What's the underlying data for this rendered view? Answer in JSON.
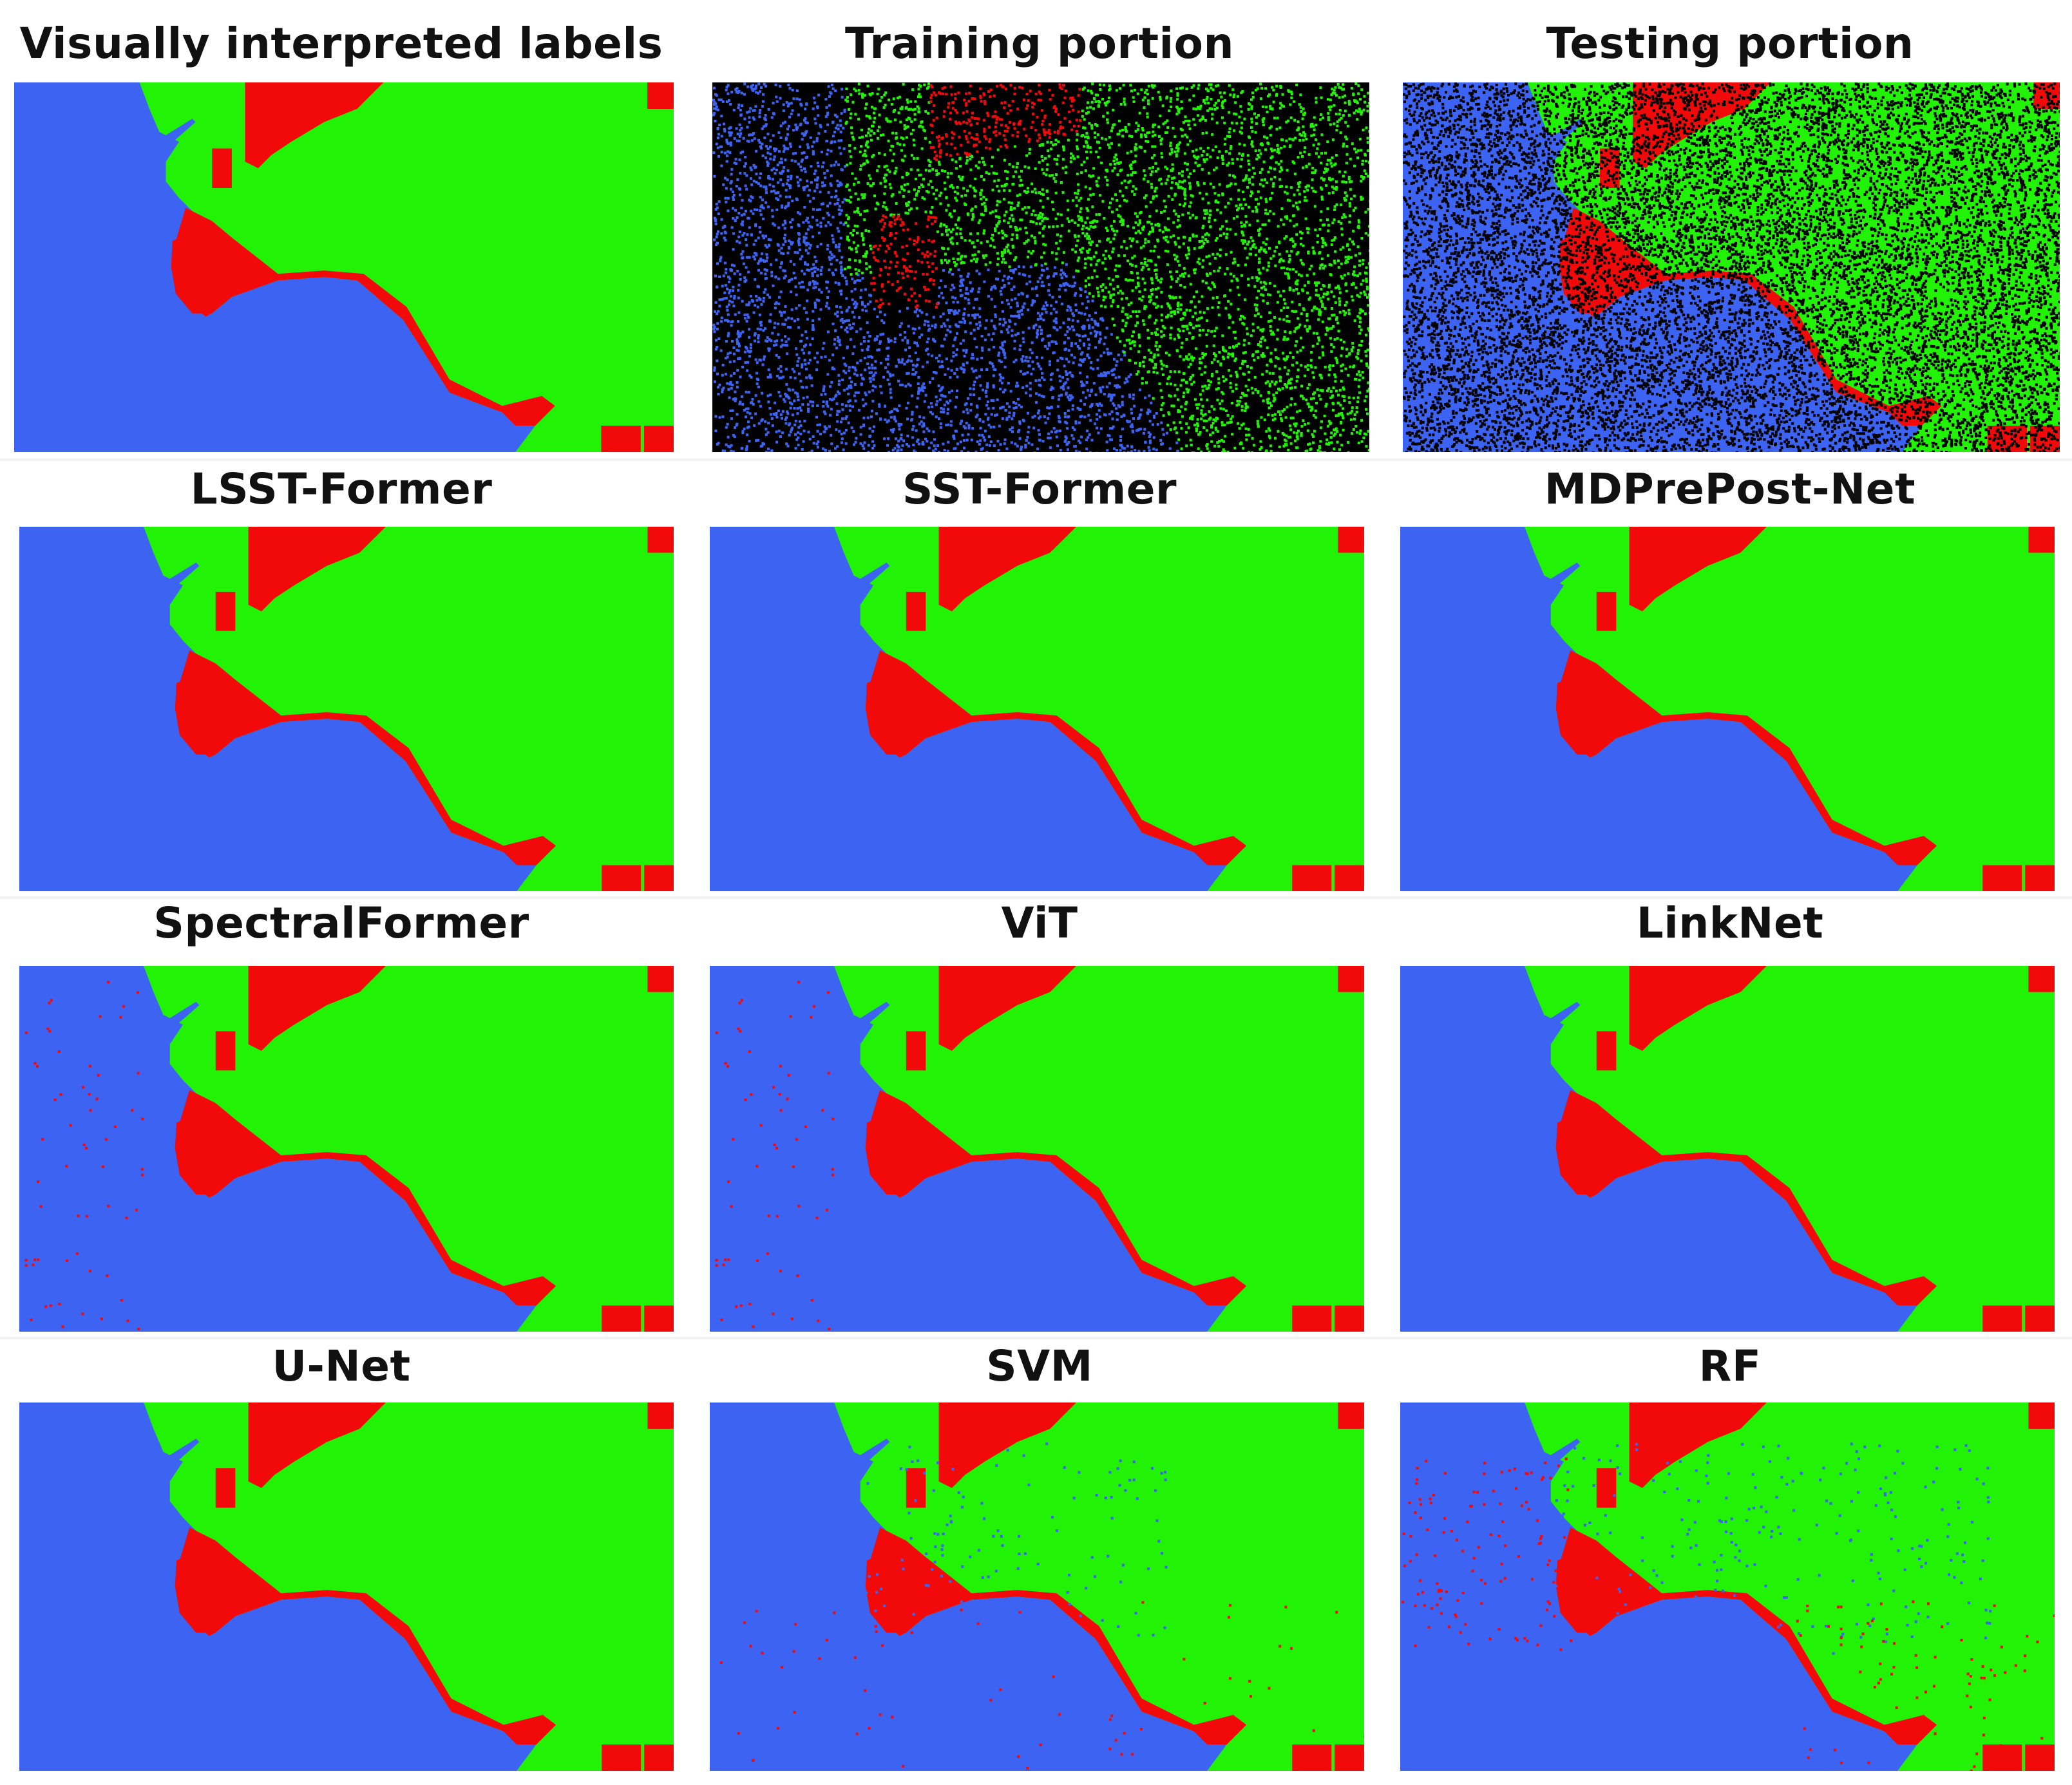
{
  "colors": {
    "water": "#3d63f3",
    "vegetation": "#22f205",
    "built": "#f20a0a",
    "background": "#000000"
  },
  "panels": [
    {
      "title": "Visually interpreted labels",
      "variant": "label"
    },
    {
      "title": "Training portion",
      "variant": "train"
    },
    {
      "title": "Testing portion",
      "variant": "test"
    },
    {
      "title": "LSST-Former",
      "variant": "lsst"
    },
    {
      "title": "SST-Former",
      "variant": "sst"
    },
    {
      "title": "MDPrePost-Net",
      "variant": "mdpp"
    },
    {
      "title": "SpectralFormer",
      "variant": "spectral"
    },
    {
      "title": "ViT",
      "variant": "vit"
    },
    {
      "title": "LinkNet",
      "variant": "linknet"
    },
    {
      "title": "U-Net",
      "variant": "unet"
    },
    {
      "title": "SVM",
      "variant": "svm"
    },
    {
      "title": "RF",
      "variant": "rf"
    }
  ]
}
